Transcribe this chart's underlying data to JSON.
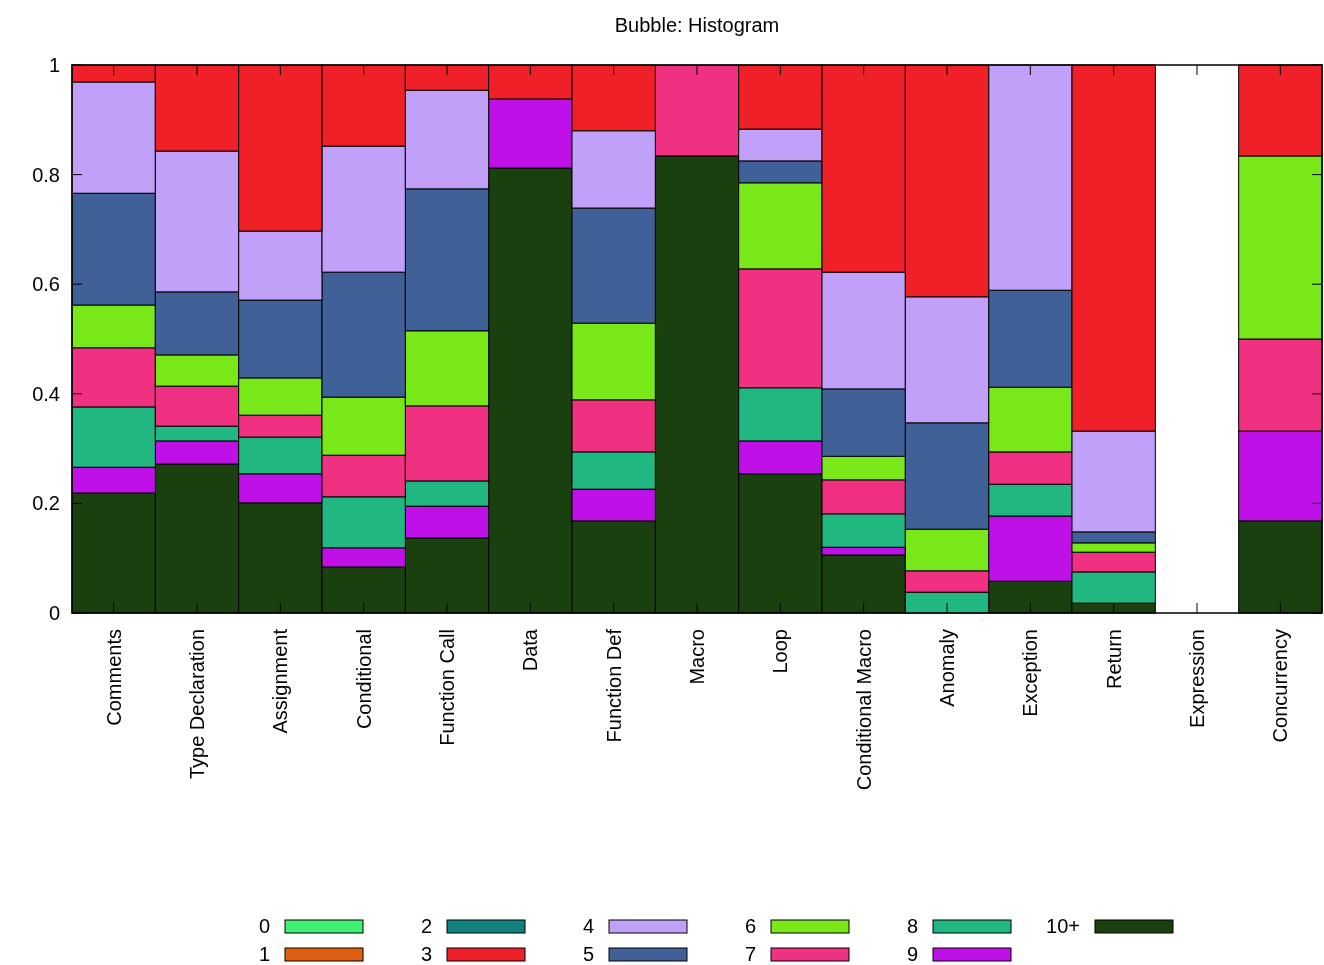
{
  "chart_data": {
    "type": "bar",
    "title": "Bubble: Histogram",
    "stacked": true,
    "legend": "bottom",
    "grid": false,
    "categories": [
      "Comments",
      "Type Declaration",
      "Assignment",
      "Conditional",
      "Function Call",
      "Data",
      "Function Def",
      "Macro",
      "Loop",
      "Conditional Macro",
      "Anomaly",
      "Exception",
      "Return",
      "Expression",
      "Concurrency"
    ],
    "ylim": [
      0,
      1
    ],
    "yticks": [
      0,
      0.2,
      0.4,
      0.6,
      0.8,
      1
    ],
    "series": [
      {
        "name": "10+",
        "color": "#1a4010",
        "values": [
          0.219,
          0.272,
          0.201,
          0.084,
          0.137,
          0.812,
          0.168,
          0.834,
          0.254,
          0.106,
          0,
          0.058,
          0.018,
          0,
          0.168
        ]
      },
      {
        "name": "9",
        "color": "#c010e8",
        "values": [
          0.047,
          0.042,
          0.053,
          0.035,
          0.058,
          0.126,
          0.058,
          0,
          0.06,
          0.014,
          0,
          0.119,
          0,
          0,
          0.164
        ]
      },
      {
        "name": "8",
        "color": "#20b880",
        "values": [
          0.11,
          0.027,
          0.067,
          0.093,
          0.046,
          0,
          0.068,
          0,
          0.097,
          0.061,
          0.038,
          0.058,
          0.057,
          0,
          0
        ]
      },
      {
        "name": "7",
        "color": "#f03080",
        "values": [
          0.108,
          0.073,
          0.04,
          0.076,
          0.137,
          0,
          0.095,
          0.166,
          0.217,
          0.062,
          0.039,
          0.059,
          0.036,
          0,
          0.168
        ]
      },
      {
        "name": "6",
        "color": "#78e818",
        "values": [
          0.078,
          0.057,
          0.068,
          0.106,
          0.137,
          0,
          0.14,
          0,
          0.157,
          0.043,
          0.076,
          0.118,
          0.017,
          0,
          0.334
        ]
      },
      {
        "name": "5",
        "color": "#406098",
        "values": [
          0.204,
          0.115,
          0.142,
          0.228,
          0.259,
          0,
          0.21,
          0,
          0.04,
          0.123,
          0.194,
          0.177,
          0.02,
          0,
          0
        ]
      },
      {
        "name": "4",
        "color": "#c0a0f8",
        "values": [
          0.203,
          0.257,
          0.126,
          0.23,
          0.18,
          0,
          0.141,
          0,
          0.058,
          0.213,
          0.23,
          0.411,
          0.184,
          0,
          0
        ]
      },
      {
        "name": "3",
        "color": "#f02028",
        "values": [
          0.031,
          0.157,
          0.303,
          0.148,
          0.046,
          0.062,
          0.12,
          0,
          0.117,
          0.378,
          0.423,
          0,
          0.668,
          0,
          0.166
        ]
      },
      {
        "name": "2",
        "color": "#108080",
        "values": [
          0,
          0,
          0,
          0,
          0,
          0,
          0,
          0,
          0,
          0,
          0,
          0,
          0,
          0,
          0
        ]
      },
      {
        "name": "1",
        "color": "#e06010",
        "values": [
          0,
          0,
          0,
          0,
          0,
          0,
          0,
          0,
          0,
          0,
          0,
          0,
          0,
          0,
          0
        ]
      },
      {
        "name": "0",
        "color": "#40f070",
        "values": [
          0,
          0,
          0,
          0,
          0,
          0,
          0,
          0,
          0,
          0,
          0,
          0,
          0,
          0,
          0
        ]
      }
    ]
  }
}
